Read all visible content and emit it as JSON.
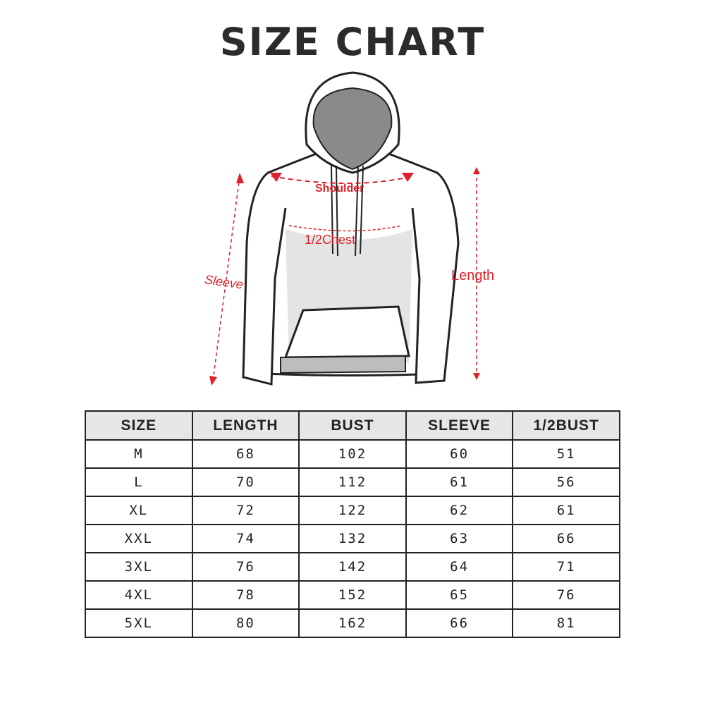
{
  "title": "SIZE CHART",
  "diagram": {
    "labels": {
      "shoulder": "Shoulder",
      "chest": "1/2Chest",
      "sleeve": "Sleeve",
      "length": "Length"
    },
    "accent_color": "#e0202a"
  },
  "table": {
    "headers": [
      "SIZE",
      "LENGTH",
      "BUST",
      "SLEEVE",
      "1/2BUST"
    ],
    "rows": [
      [
        "M",
        "68",
        "102",
        "60",
        "51"
      ],
      [
        "L",
        "70",
        "112",
        "61",
        "56"
      ],
      [
        "XL",
        "72",
        "122",
        "62",
        "61"
      ],
      [
        "XXL",
        "74",
        "132",
        "63",
        "66"
      ],
      [
        "3XL",
        "76",
        "142",
        "64",
        "71"
      ],
      [
        "4XL",
        "78",
        "152",
        "65",
        "76"
      ],
      [
        "5XL",
        "80",
        "162",
        "66",
        "81"
      ]
    ]
  }
}
